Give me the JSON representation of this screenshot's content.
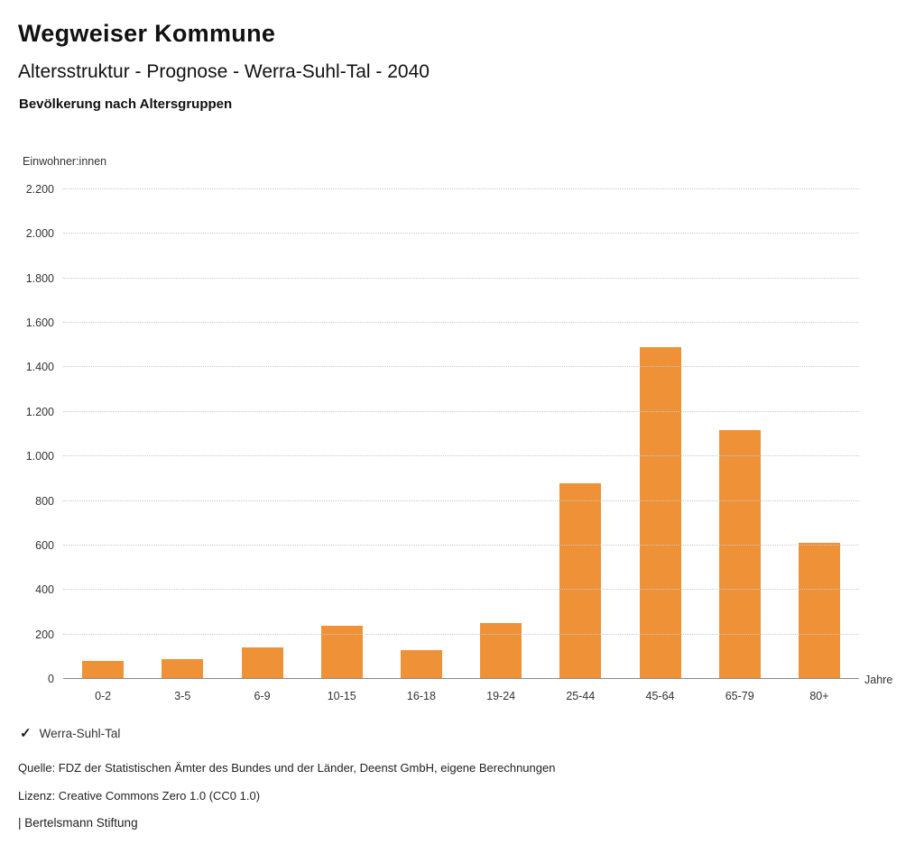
{
  "header": {
    "title": "Wegweiser Kommune",
    "subtitle": "Altersstruktur - Prognose - Werra-Suhl-Tal - 2040",
    "chart_heading": "Bevölkerung nach Altersgruppen"
  },
  "chart_data": {
    "type": "bar",
    "title": "Bevölkerung nach Altersgruppen",
    "ylabel": "Einwohner:innen",
    "xlabel": "Jahre",
    "categories": [
      "0-2",
      "3-5",
      "6-9",
      "10-15",
      "16-18",
      "19-24",
      "25-44",
      "45-64",
      "65-79",
      "80+"
    ],
    "values": [
      80,
      90,
      140,
      240,
      130,
      250,
      880,
      1490,
      1120,
      610
    ],
    "ylim": [
      0,
      2200
    ],
    "ytick_step": 200,
    "ytick_labels": [
      "0",
      "200",
      "400",
      "600",
      "800",
      "1.000",
      "1.200",
      "1.400",
      "1.600",
      "1.800",
      "2.000",
      "2.200"
    ],
    "bar_color": "#ef9137",
    "grid": "horizontal-dotted",
    "legend_position": "bottom-left",
    "legend_label": "Werra-Suhl-Tal",
    "series": [
      {
        "name": "Werra-Suhl-Tal",
        "values": [
          80,
          90,
          140,
          240,
          130,
          250,
          880,
          1490,
          1120,
          610
        ]
      }
    ]
  },
  "legend": {
    "check_icon": "✓",
    "label": "Werra-Suhl-Tal"
  },
  "footer": {
    "source": "Quelle: FDZ der Statistischen Ämter des Bundes und der Länder, Deenst GmbH, eigene Berechnungen",
    "license": "Lizenz: Creative Commons Zero 1.0 (CC0 1.0)",
    "brand": "| Bertelsmann Stiftung"
  },
  "colors": {
    "accent_orange": "#ef9137",
    "gridline": "#c8c8c8",
    "axis_line": "#8a8a8a"
  }
}
